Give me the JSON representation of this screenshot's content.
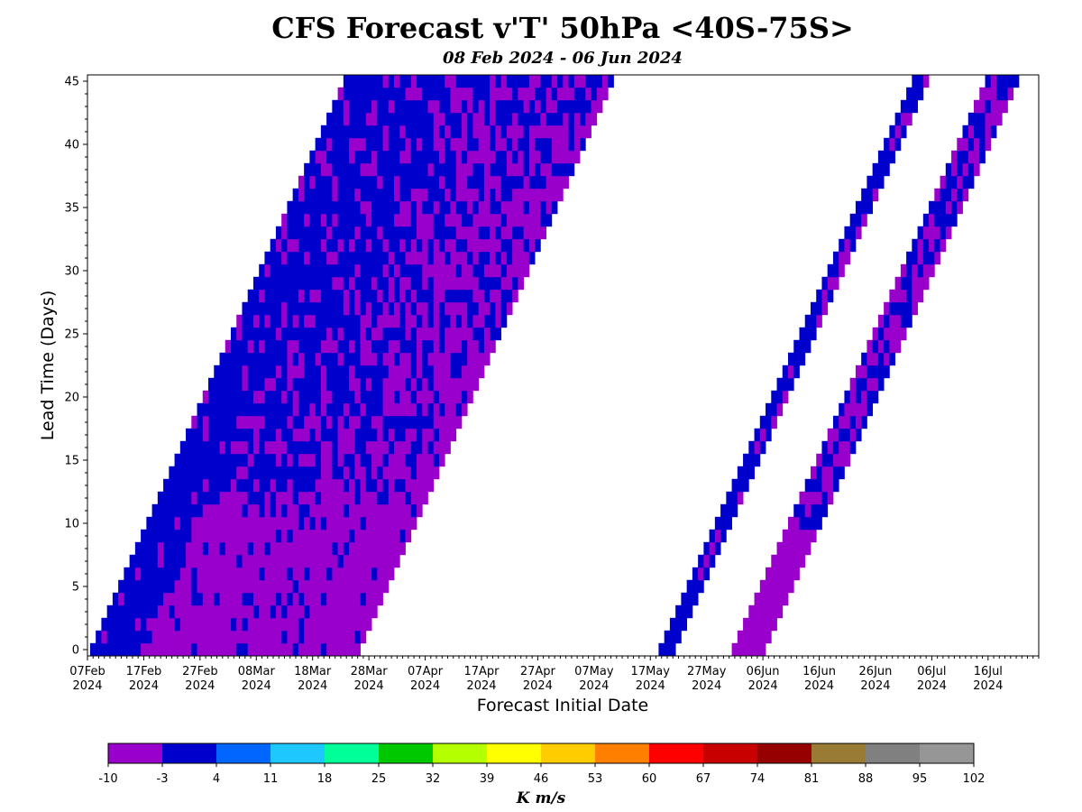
{
  "title": "CFS Forecast v'T' 50hPa <40S-75S>",
  "subtitle": "08 Feb 2024 - 06 Jun 2024",
  "chart_data": {
    "type": "heatmap",
    "xlabel": "Forecast Initial Date",
    "ylabel": "Lead Time (Days)",
    "x_ticks": [
      {
        "top": "07Feb",
        "bottom": "2024"
      },
      {
        "top": "17Feb",
        "bottom": "2024"
      },
      {
        "top": "27Feb",
        "bottom": "2024"
      },
      {
        "top": "08Mar",
        "bottom": "2024"
      },
      {
        "top": "18Mar",
        "bottom": "2024"
      },
      {
        "top": "28Mar",
        "bottom": "2024"
      },
      {
        "top": "07Apr",
        "bottom": "2024"
      },
      {
        "top": "17Apr",
        "bottom": "2024"
      },
      {
        "top": "27Apr",
        "bottom": "2024"
      },
      {
        "top": "07May",
        "bottom": "2024"
      },
      {
        "top": "17May",
        "bottom": "2024"
      },
      {
        "top": "27May",
        "bottom": "2024"
      },
      {
        "top": "06Jun",
        "bottom": "2024"
      },
      {
        "top": "16Jun",
        "bottom": "2024"
      },
      {
        "top": "26Jun",
        "bottom": "2024"
      },
      {
        "top": "06Jul",
        "bottom": "2024"
      },
      {
        "top": "16Jul",
        "bottom": "2024"
      }
    ],
    "x_range": [
      "2024-02-07",
      "2024-07-25"
    ],
    "y_ticks": [
      0,
      5,
      10,
      15,
      20,
      25,
      30,
      35,
      40,
      45
    ],
    "y_range": [
      -0.5,
      45.5
    ],
    "data_bands": [
      {
        "start_date": "2024-02-08",
        "end_date": "2024-03-26",
        "lead_days": [
          0,
          45
        ]
      },
      {
        "start_date": "2024-05-19",
        "end_date": "2024-05-21",
        "lead_days": [
          0,
          45
        ]
      },
      {
        "start_date": "2024-06-01",
        "end_date": "2024-06-06",
        "lead_days": [
          0,
          45
        ]
      }
    ],
    "dominant_values": [
      "-10 to -3",
      "-3 to 4"
    ],
    "colorbar": {
      "units": "K m/s",
      "tick_labels": [
        "-10",
        "-3",
        "4",
        "11",
        "18",
        "25",
        "32",
        "39",
        "46",
        "53",
        "60",
        "67",
        "74",
        "81",
        "88",
        "95",
        "102"
      ],
      "colors": [
        "#9900cc",
        "#0000cc",
        "#0066ff",
        "#1ec8ff",
        "#00ff99",
        "#00c800",
        "#b4ff00",
        "#ffff00",
        "#ffcc00",
        "#ff8000",
        "#ff0000",
        "#c80000",
        "#960000",
        "#9a7b33",
        "#808080",
        "#969696"
      ]
    }
  }
}
